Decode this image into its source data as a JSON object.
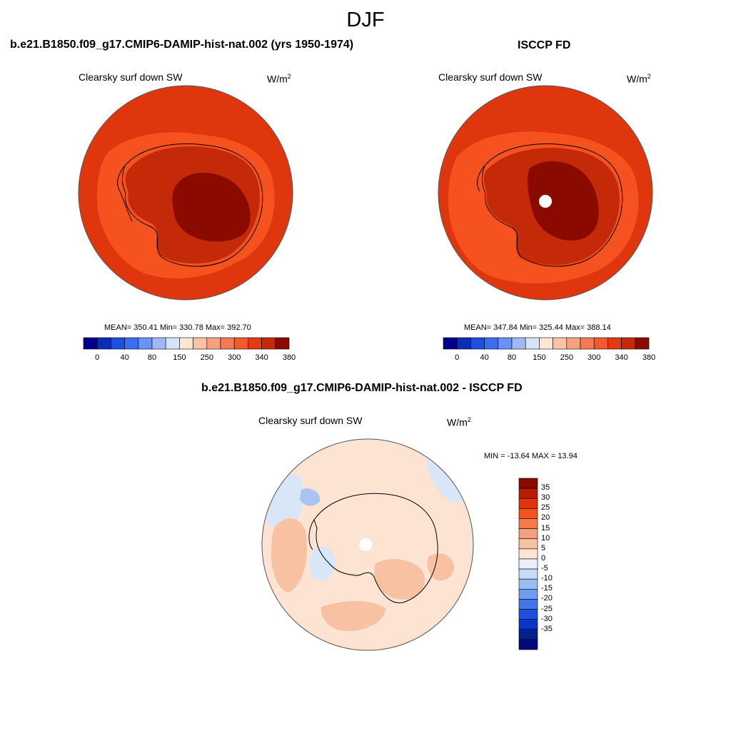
{
  "figure": {
    "season": "DJF",
    "units_base": "W/m",
    "units_exp": "2"
  },
  "panels": [
    {
      "title": "b.e21.B1850.f09_g17.CMIP6-DAMIP-hist-nat.002 (yrs 1950-1974)",
      "variable": "Clearsky surf down SW",
      "stats": "MEAN= 350.41  Min= 330.78  Max= 392.70"
    },
    {
      "title": "ISCCP FD",
      "variable": "Clearsky surf down SW",
      "stats": "MEAN= 347.84  Min= 325.44  Max= 388.14"
    },
    {
      "title": "b.e21.B1850.f09_g17.CMIP6-DAMIP-hist-nat.002 - ISCCP FD",
      "variable": "Clearsky surf down SW",
      "stats": "MIN = -13.64 MAX =  13.94"
    }
  ],
  "abs_colorbar": {
    "colors": [
      "#00008b",
      "#0a2db5",
      "#1e4fe0",
      "#3c6cf0",
      "#6a91f5",
      "#9fb9f7",
      "#d4e4fa",
      "#fde6d4",
      "#f8c3a6",
      "#f7a07e",
      "#f57a52",
      "#f15a2a",
      "#e33a10",
      "#c42a08",
      "#8b0a00"
    ],
    "tick_labels": [
      "0",
      "40",
      "80",
      "150",
      "250",
      "300",
      "340",
      "380"
    ]
  },
  "diff_colorbar": {
    "colors": [
      "#8b0a00",
      "#b81e02",
      "#e0340c",
      "#f5521f",
      "#f77a4b",
      "#f7a07d",
      "#f8c1a2",
      "#fde4d2",
      "#e8f0fb",
      "#c7dbf7",
      "#9cbdf4",
      "#6f9cf0",
      "#4274ea",
      "#1f4fe0",
      "#0c34c9",
      "#03208f",
      "#000a7a"
    ],
    "tick_labels": [
      "35",
      "30",
      "25",
      "20",
      "15",
      "10",
      "5",
      "0",
      "-5",
      "-10",
      "-15",
      "-20",
      "-25",
      "-30",
      "-35"
    ]
  },
  "map_colors": {
    "ocean_outer": "#e0360e",
    "ocean_inner": "#f5521f",
    "coast_ring": "#c42a08",
    "interior": "#8b0a00",
    "diff_base": "#fde4d2",
    "diff_warm": "#f8c1a2",
    "diff_cool": "#d9e6f7",
    "diff_cold": "#a9c4f2"
  }
}
